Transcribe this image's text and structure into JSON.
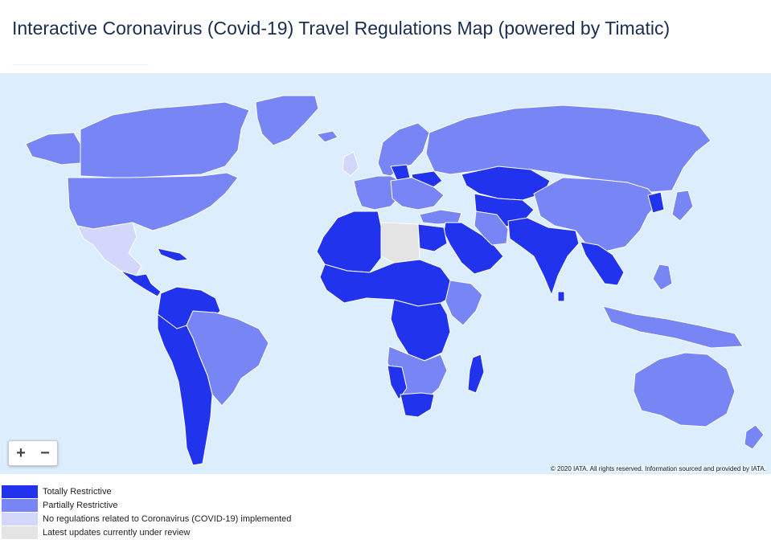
{
  "page": {
    "title": "Interactive Coronavirus (Covid-19) Travel Regulations Map (powered by Timatic)"
  },
  "colors": {
    "ocean": "#dceefd",
    "totally": "#2233ee",
    "partially": "#7785f5",
    "none": "#d3d7fb",
    "review": "#e4e4e4",
    "border": "#ffffff"
  },
  "map": {
    "zoom_in_label": "+",
    "zoom_out_label": "−",
    "attribution": "© 2020 IATA. All rights reserved. Information sourced and provided by IATA."
  },
  "legend": {
    "items": [
      {
        "label": "Totally Restrictive",
        "color": "#2233ee"
      },
      {
        "label": "Partially Restrictive",
        "color": "#7785f5"
      },
      {
        "label": "No regulations related to Coronavirus (COVID-19) implemented",
        "color": "#d3d7fb"
      },
      {
        "label": "Latest updates currently under review",
        "color": "#e4e4e4"
      }
    ]
  }
}
